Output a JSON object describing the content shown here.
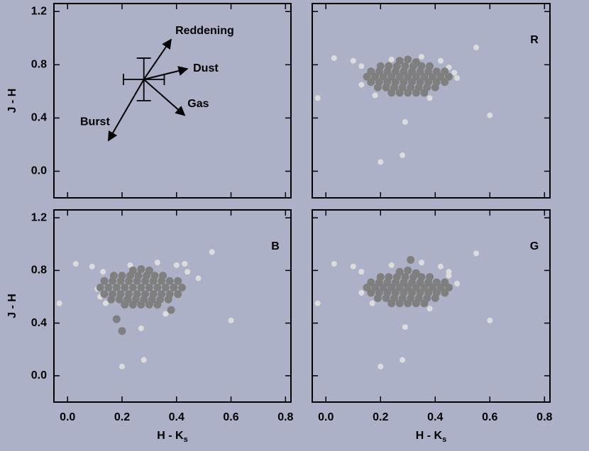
{
  "chart_data": [
    {
      "type": "vectors",
      "ylabel": "J - H",
      "xlim": [
        -0.05,
        0.82
      ],
      "ylim": [
        -0.2,
        1.26
      ],
      "yticks": [
        {
          "value": 0,
          "label": "0.0"
        },
        0.4,
        0.8,
        1.2
      ],
      "origin": [
        0.28,
        0.69
      ],
      "error": {
        "xerr": 0.075,
        "yerr": 0.16
      },
      "vectors": [
        {
          "label": "Reddening",
          "dx": 0.1,
          "dy": 0.3
        },
        {
          "label": "Dust",
          "dx": 0.16,
          "dy": 0.08
        },
        {
          "label": "Gas",
          "dx": 0.15,
          "dy": -0.27
        },
        {
          "label": "Burst",
          "dx": -0.13,
          "dy": -0.46
        }
      ]
    },
    {
      "type": "scatter",
      "title": "R",
      "xlim": [
        -0.05,
        0.82
      ],
      "ylim": [
        -0.2,
        1.26
      ],
      "series": [
        {
          "color": "#dcdcdc",
          "x": [
            -0.03,
            0.03,
            0.1,
            0.13,
            0.2,
            0.28,
            0.29,
            0.47,
            0.55,
            0.6,
            0.13,
            0.42,
            0.45,
            0.18,
            0.38,
            0.35,
            0.24,
            0.48
          ],
          "y": [
            0.55,
            0.85,
            0.83,
            0.79,
            0.07,
            0.12,
            0.37,
            0.74,
            0.93,
            0.42,
            0.65,
            0.83,
            0.78,
            0.57,
            0.55,
            0.86,
            0.84,
            0.7
          ]
        },
        {
          "color": "#7f7f7f",
          "x": [
            0.27,
            0.3,
            0.33,
            0.2,
            0.23,
            0.26,
            0.29,
            0.32,
            0.35,
            0.38,
            0.165,
            0.195,
            0.225,
            0.255,
            0.285,
            0.315,
            0.345,
            0.375,
            0.405,
            0.435,
            0.15,
            0.18,
            0.21,
            0.24,
            0.27,
            0.3,
            0.33,
            0.36,
            0.39,
            0.42,
            0.45,
            0.165,
            0.195,
            0.225,
            0.255,
            0.285,
            0.315,
            0.345,
            0.375,
            0.405,
            0.435,
            0.19,
            0.22,
            0.25,
            0.28,
            0.31,
            0.34,
            0.37,
            0.4,
            0.24,
            0.27,
            0.3,
            0.33,
            0.36
          ],
          "y": [
            0.83,
            0.84,
            0.82,
            0.79,
            0.79,
            0.79,
            0.79,
            0.79,
            0.79,
            0.79,
            0.75,
            0.75,
            0.75,
            0.75,
            0.75,
            0.75,
            0.75,
            0.75,
            0.75,
            0.75,
            0.71,
            0.71,
            0.71,
            0.71,
            0.71,
            0.71,
            0.71,
            0.71,
            0.71,
            0.71,
            0.71,
            0.67,
            0.67,
            0.67,
            0.67,
            0.67,
            0.67,
            0.67,
            0.67,
            0.67,
            0.67,
            0.63,
            0.63,
            0.63,
            0.63,
            0.63,
            0.63,
            0.63,
            0.63,
            0.59,
            0.59,
            0.59,
            0.59,
            0.59
          ]
        }
      ]
    },
    {
      "type": "scatter",
      "title": "B",
      "ylabel": "J - H",
      "xlabel": "H - K",
      "xlabel_subscript": "s",
      "xlim": [
        -0.05,
        0.82
      ],
      "ylim": [
        -0.2,
        1.26
      ],
      "xticks": [
        {
          "value": 0,
          "label": "0.0"
        },
        0.2,
        0.4,
        0.6,
        0.8
      ],
      "yticks": [
        {
          "value": 0,
          "label": "0.0"
        },
        0.4,
        0.8,
        1.2
      ],
      "series": [
        {
          "color": "#dcdcdc",
          "x": [
            -0.03,
            0.03,
            0.09,
            0.13,
            0.2,
            0.28,
            0.27,
            0.43,
            0.53,
            0.6,
            0.11,
            0.4,
            0.44,
            0.14,
            0.36,
            0.33,
            0.23,
            0.48,
            0.12
          ],
          "y": [
            0.55,
            0.85,
            0.83,
            0.79,
            0.07,
            0.12,
            0.36,
            0.85,
            0.94,
            0.42,
            0.66,
            0.84,
            0.79,
            0.55,
            0.47,
            0.86,
            0.84,
            0.74,
            0.6
          ]
        },
        {
          "color": "#7f7f7f",
          "x": [
            0.24,
            0.27,
            0.3,
            0.17,
            0.2,
            0.23,
            0.26,
            0.29,
            0.32,
            0.35,
            0.135,
            0.165,
            0.195,
            0.225,
            0.255,
            0.285,
            0.315,
            0.345,
            0.375,
            0.405,
            0.12,
            0.15,
            0.18,
            0.21,
            0.24,
            0.27,
            0.3,
            0.33,
            0.36,
            0.39,
            0.42,
            0.135,
            0.165,
            0.195,
            0.225,
            0.255,
            0.285,
            0.315,
            0.345,
            0.375,
            0.405,
            0.16,
            0.19,
            0.22,
            0.25,
            0.28,
            0.31,
            0.34,
            0.37,
            0.21,
            0.24,
            0.27,
            0.3,
            0.33,
            0.18,
            0.2,
            0.38
          ],
          "y": [
            0.8,
            0.81,
            0.8,
            0.76,
            0.76,
            0.76,
            0.76,
            0.76,
            0.76,
            0.76,
            0.72,
            0.72,
            0.72,
            0.72,
            0.72,
            0.72,
            0.72,
            0.72,
            0.72,
            0.72,
            0.67,
            0.67,
            0.67,
            0.67,
            0.67,
            0.67,
            0.67,
            0.67,
            0.67,
            0.67,
            0.67,
            0.62,
            0.62,
            0.62,
            0.62,
            0.62,
            0.62,
            0.62,
            0.62,
            0.62,
            0.62,
            0.58,
            0.58,
            0.58,
            0.58,
            0.58,
            0.58,
            0.58,
            0.58,
            0.54,
            0.54,
            0.54,
            0.54,
            0.54,
            0.43,
            0.34,
            0.5
          ]
        }
      ]
    },
    {
      "type": "scatter",
      "title": "G",
      "xlabel": "H - K",
      "xlabel_subscript": "s",
      "xlim": [
        -0.05,
        0.82
      ],
      "ylim": [
        -0.2,
        1.26
      ],
      "xticks": [
        {
          "value": 0,
          "label": "0.0"
        },
        0.2,
        0.4,
        0.6,
        0.8
      ],
      "series": [
        {
          "color": "#dcdcdc",
          "x": [
            -0.03,
            0.03,
            0.1,
            0.13,
            0.2,
            0.28,
            0.29,
            0.45,
            0.55,
            0.6,
            0.13,
            0.42,
            0.45,
            0.17,
            0.38,
            0.35,
            0.24,
            0.48
          ],
          "y": [
            0.55,
            0.85,
            0.83,
            0.79,
            0.07,
            0.12,
            0.37,
            0.76,
            0.93,
            0.42,
            0.63,
            0.83,
            0.79,
            0.55,
            0.51,
            0.86,
            0.84,
            0.7
          ]
        },
        {
          "color": "#7f7f7f",
          "x": [
            0.27,
            0.3,
            0.33,
            0.2,
            0.23,
            0.26,
            0.29,
            0.32,
            0.35,
            0.38,
            0.165,
            0.195,
            0.225,
            0.255,
            0.285,
            0.315,
            0.345,
            0.375,
            0.405,
            0.435,
            0.15,
            0.18,
            0.21,
            0.24,
            0.27,
            0.3,
            0.33,
            0.36,
            0.39,
            0.42,
            0.45,
            0.165,
            0.195,
            0.225,
            0.255,
            0.285,
            0.315,
            0.345,
            0.375,
            0.405,
            0.435,
            0.19,
            0.22,
            0.25,
            0.28,
            0.31,
            0.34,
            0.37,
            0.4,
            0.24,
            0.27,
            0.3,
            0.33,
            0.36,
            0.31
          ],
          "y": [
            0.79,
            0.8,
            0.78,
            0.75,
            0.75,
            0.75,
            0.75,
            0.75,
            0.75,
            0.75,
            0.71,
            0.71,
            0.71,
            0.71,
            0.71,
            0.71,
            0.71,
            0.71,
            0.71,
            0.71,
            0.67,
            0.67,
            0.67,
            0.67,
            0.67,
            0.67,
            0.67,
            0.67,
            0.67,
            0.67,
            0.67,
            0.63,
            0.63,
            0.63,
            0.63,
            0.63,
            0.63,
            0.63,
            0.63,
            0.63,
            0.63,
            0.59,
            0.59,
            0.59,
            0.59,
            0.59,
            0.59,
            0.59,
            0.59,
            0.55,
            0.55,
            0.55,
            0.55,
            0.55,
            0.88
          ]
        }
      ]
    }
  ]
}
